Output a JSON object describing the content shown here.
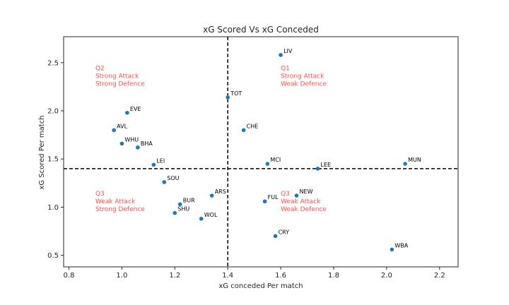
{
  "chart_data": {
    "type": "scatter",
    "title": "xG Scored Vs xG Conceded",
    "xlabel": "xG conceded Per match",
    "ylabel": "xG Scored Per match",
    "xlim": [
      0.78,
      2.27
    ],
    "ylim": [
      0.38,
      2.77
    ],
    "xticks": [
      0.8,
      1.0,
      1.2,
      1.4,
      1.6,
      1.8,
      2.0,
      2.2
    ],
    "xtick_labels": [
      "0.8",
      "1.0",
      "1.2",
      "1.4",
      "1.6",
      "1.8",
      "2.0",
      "2.2"
    ],
    "yticks": [
      0.5,
      1.0,
      1.5,
      2.0,
      2.5
    ],
    "ytick_labels": [
      "0.5",
      "1.0",
      "1.5",
      "2.0",
      "2.5"
    ],
    "grid": false,
    "point_color": "#1f77b4",
    "reference_lines": {
      "x": 1.4,
      "y": 1.4,
      "style": "dashed",
      "color": "#000000"
    },
    "points": [
      {
        "label": "LIV",
        "x": 1.6,
        "y": 2.58
      },
      {
        "label": "TOT",
        "x": 1.4,
        "y": 2.14
      },
      {
        "label": "EVE",
        "x": 1.02,
        "y": 1.98
      },
      {
        "label": "AVL",
        "x": 0.97,
        "y": 1.8
      },
      {
        "label": "CHE",
        "x": 1.46,
        "y": 1.8
      },
      {
        "label": "WHU",
        "x": 1.0,
        "y": 1.66
      },
      {
        "label": "BHA",
        "x": 1.06,
        "y": 1.62
      },
      {
        "label": "LEI",
        "x": 1.12,
        "y": 1.44
      },
      {
        "label": "MCI",
        "x": 1.55,
        "y": 1.45
      },
      {
        "label": "LEE",
        "x": 1.74,
        "y": 1.4
      },
      {
        "label": "MUN",
        "x": 2.07,
        "y": 1.45
      },
      {
        "label": "SOU",
        "x": 1.16,
        "y": 1.26
      },
      {
        "label": "ARS",
        "x": 1.34,
        "y": 1.12
      },
      {
        "label": "NEW",
        "x": 1.66,
        "y": 1.12
      },
      {
        "label": "FUL",
        "x": 1.54,
        "y": 1.06
      },
      {
        "label": "BUR",
        "x": 1.22,
        "y": 1.03
      },
      {
        "label": "SHU",
        "x": 1.2,
        "y": 0.94
      },
      {
        "label": "WOL",
        "x": 1.3,
        "y": 0.88
      },
      {
        "label": "CRY",
        "x": 1.58,
        "y": 0.7
      },
      {
        "label": "WBA",
        "x": 2.02,
        "y": 0.56
      }
    ],
    "annotations": [
      {
        "lines": [
          "Q2",
          "Strong Attack",
          "Strong Defence"
        ],
        "x": 0.9,
        "y": 2.42,
        "color": "#ff4d4d"
      },
      {
        "lines": [
          "Q1",
          "Strong Attack",
          "Weak Defence"
        ],
        "x": 1.6,
        "y": 2.42,
        "color": "#ff4d4d"
      },
      {
        "lines": [
          "Q3",
          "Weak Attack",
          "Strong Defence"
        ],
        "x": 0.9,
        "y": 1.12,
        "color": "#ff4d4d"
      },
      {
        "lines": [
          "Q3",
          "Weak Attack",
          "Weak Defence"
        ],
        "x": 1.6,
        "y": 1.12,
        "color": "#ff4d4d"
      }
    ]
  }
}
